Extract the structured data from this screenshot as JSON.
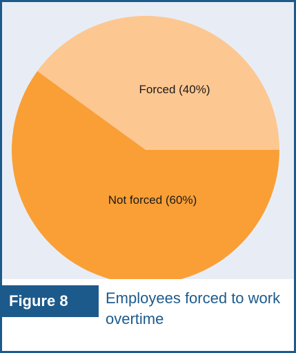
{
  "figure": {
    "number_label": "Figure 8",
    "title": "Employees forced to work overtime"
  },
  "colors": {
    "border": "#1d5a8c",
    "chart_background": "#e8edf5",
    "forced": "#fdc791",
    "not_forced": "#f99f36"
  },
  "chart_data": {
    "type": "pie",
    "title": "",
    "slices": [
      {
        "label": "Forced (40%)",
        "value": 40
      },
      {
        "label": "Not forced (60%)",
        "value": 60
      }
    ]
  }
}
